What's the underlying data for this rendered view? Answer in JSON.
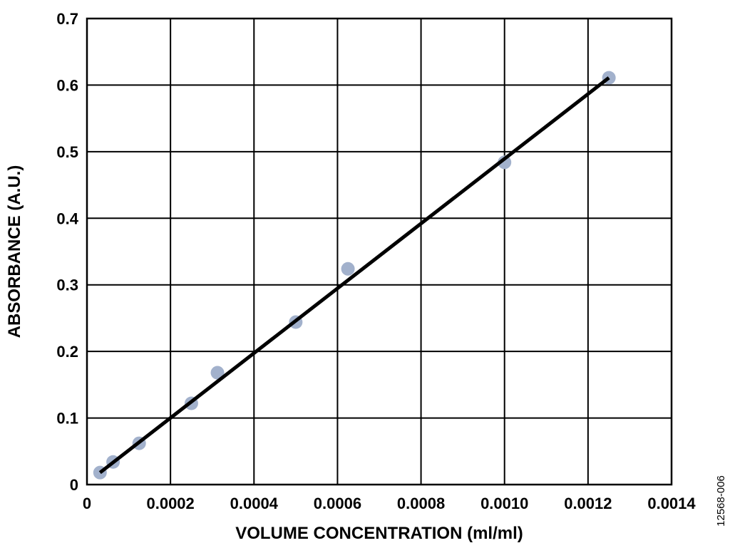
{
  "chart_data": {
    "type": "scatter",
    "title": "",
    "xlabel": "VOLUME CONCENTRATION (ml/ml)",
    "ylabel": "ABSORBANCE (A.U.)",
    "xlim": [
      0,
      0.0014
    ],
    "ylim": [
      0,
      0.7
    ],
    "x_ticks": [
      "0",
      "0.0002",
      "0.0004",
      "0.0006",
      "0.0008",
      "0.0010",
      "0.0012",
      "0.0014"
    ],
    "x_tick_values": [
      0,
      0.0002,
      0.0004,
      0.0006,
      0.0008,
      0.001,
      0.0012,
      0.0014
    ],
    "y_ticks": [
      "0",
      "0.1",
      "0.2",
      "0.3",
      "0.4",
      "0.5",
      "0.6",
      "0.7"
    ],
    "y_tick_values": [
      0,
      0.1,
      0.2,
      0.3,
      0.4,
      0.5,
      0.6,
      0.7
    ],
    "grid": true,
    "series": [
      {
        "type": "scatter",
        "x": [
          3.125e-05,
          6.25e-05,
          0.000125,
          0.00025,
          0.0003125,
          0.0005,
          0.000625,
          0.001,
          0.00125
        ],
        "y": [
          0.018,
          0.034,
          0.062,
          0.122,
          0.168,
          0.244,
          0.324,
          0.484,
          0.611
        ],
        "color": "#a2b1cc"
      },
      {
        "type": "line",
        "x": [
          3.125e-05,
          0.00125
        ],
        "y": [
          0.018,
          0.611
        ],
        "color": "#000000"
      }
    ]
  },
  "figure_id": "12568-006"
}
